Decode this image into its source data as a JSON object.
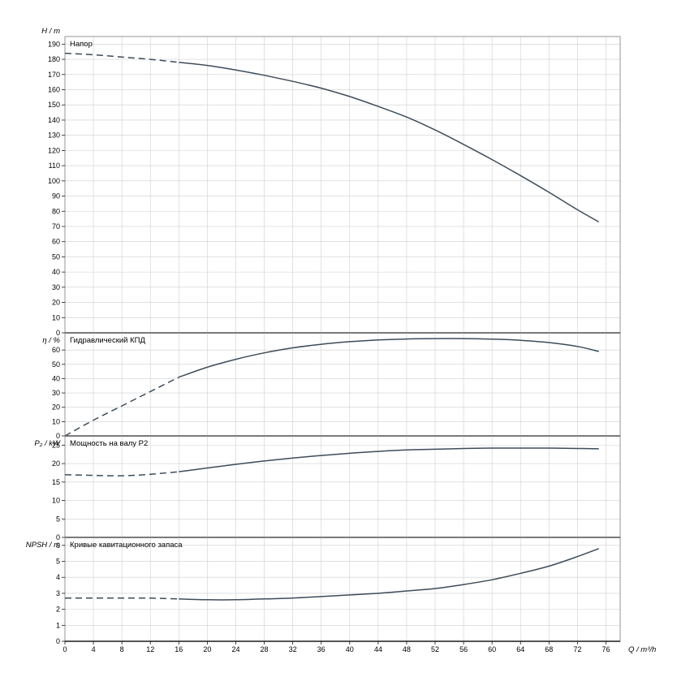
{
  "chart": {
    "x_axis": {
      "label": "Q / m³/h",
      "min": 0,
      "max": 78,
      "tick_min": 0,
      "tick_step": 4,
      "tick_max": 76
    },
    "style": {
      "curve_color": "#3d4c5a",
      "grid_color": "#cfcfcf",
      "frame_color": "#7a7a7a",
      "axis_color": "#1a1a1a",
      "background": "#ffffff"
    }
  },
  "chart_data": [
    {
      "type": "line",
      "title": "Напор",
      "ylabel": "H / m",
      "ylim": [
        0,
        195
      ],
      "ytick_step": 10,
      "ytick_max": 190,
      "dash_until": 16,
      "x": [
        0,
        4,
        8,
        12,
        16,
        20,
        24,
        28,
        32,
        36,
        40,
        44,
        48,
        52,
        56,
        60,
        64,
        68,
        72,
        75
      ],
      "values": [
        184,
        183,
        181.5,
        180,
        178,
        176,
        173,
        169.5,
        165.5,
        161,
        155.5,
        149,
        142,
        133.5,
        124,
        114,
        103.5,
        92.5,
        81,
        73
      ]
    },
    {
      "type": "line",
      "title": "Гидравлический КПД",
      "ylabel": "η / %",
      "ylim": [
        0,
        72
      ],
      "ytick_step": 10,
      "ytick_max": 60,
      "dash_until": 16,
      "x": [
        0,
        4,
        8,
        12,
        16,
        20,
        24,
        28,
        32,
        36,
        40,
        44,
        48,
        52,
        56,
        60,
        64,
        68,
        72,
        75
      ],
      "values": [
        0,
        11,
        21,
        31,
        41,
        48,
        53.5,
        58,
        61.5,
        64,
        65.8,
        67,
        67.7,
        68,
        68,
        67.6,
        66.8,
        65.2,
        62.5,
        59
      ]
    },
    {
      "type": "line",
      "title": "Мощность на валу P2",
      "ylabel": "P₂ / kW",
      "ylim": [
        0,
        27.5
      ],
      "ytick_step": 5,
      "ytick_max": 25,
      "dash_until": 16,
      "x": [
        0,
        4,
        8,
        12,
        16,
        20,
        24,
        28,
        32,
        36,
        40,
        44,
        48,
        52,
        56,
        60,
        64,
        68,
        72,
        75
      ],
      "values": [
        17,
        16.8,
        16.7,
        17.1,
        17.8,
        18.8,
        19.8,
        20.7,
        21.5,
        22.2,
        22.8,
        23.3,
        23.7,
        23.9,
        24.1,
        24.2,
        24.2,
        24.2,
        24.1,
        24
      ]
    },
    {
      "type": "line",
      "title": "Кривые кавитационного запаса",
      "ylabel": "NPSH / m",
      "ylim": [
        0,
        6.5
      ],
      "ytick_step": 1,
      "ytick_max": 6,
      "dash_until": 16,
      "x": [
        0,
        4,
        8,
        12,
        16,
        20,
        24,
        28,
        32,
        36,
        40,
        44,
        48,
        52,
        56,
        60,
        64,
        68,
        72,
        75
      ],
      "values": [
        2.7,
        2.7,
        2.7,
        2.7,
        2.65,
        2.6,
        2.6,
        2.65,
        2.7,
        2.8,
        2.9,
        3.0,
        3.15,
        3.3,
        3.55,
        3.85,
        4.25,
        4.7,
        5.3,
        5.8
      ]
    }
  ]
}
